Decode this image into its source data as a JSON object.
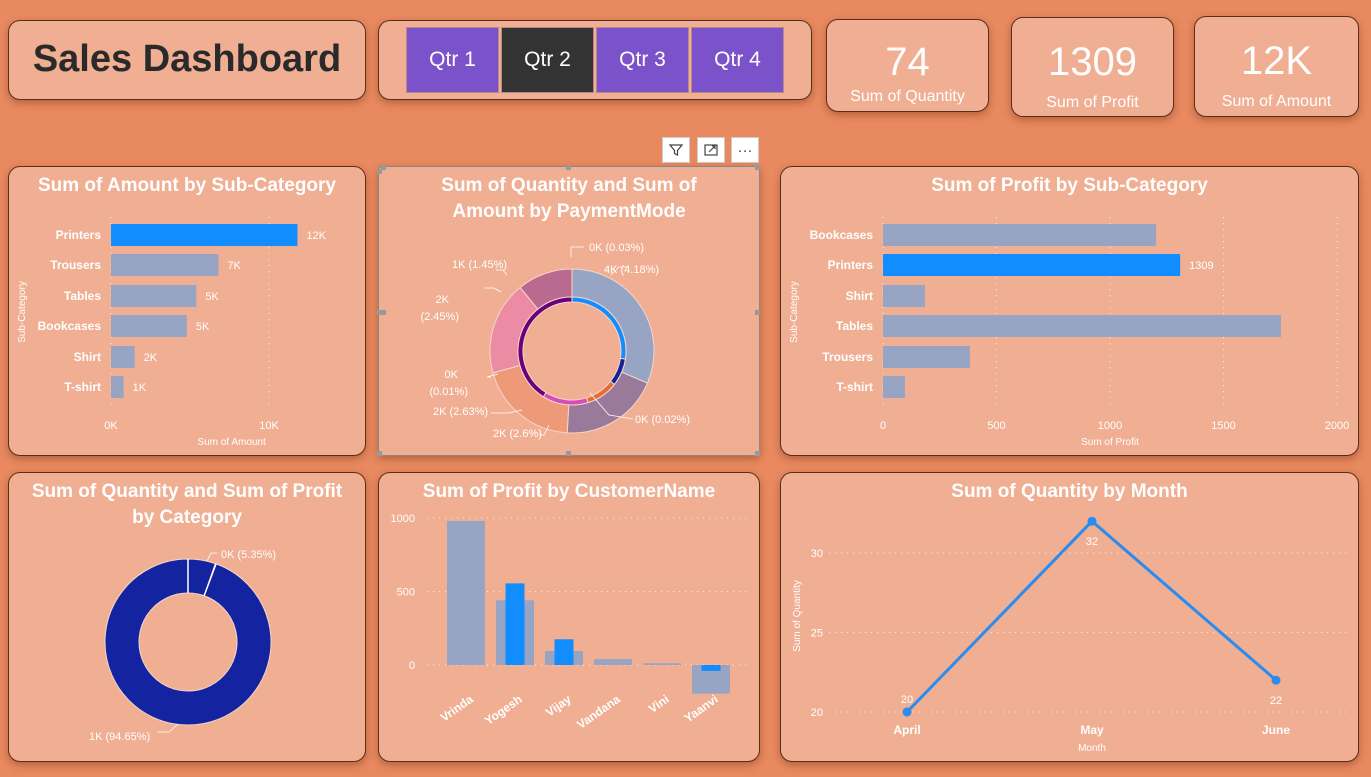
{
  "title": "Sales Dashboard",
  "quarters": [
    {
      "label": "Qtr 1",
      "selected": false
    },
    {
      "label": "Qtr 2",
      "selected": true
    },
    {
      "label": "Qtr 3",
      "selected": false
    },
    {
      "label": "Qtr 4",
      "selected": false
    }
  ],
  "kpis": [
    {
      "value": "74",
      "label": "Sum of Quantity"
    },
    {
      "value": "1309",
      "label": "Sum of Profit"
    },
    {
      "value": "12K",
      "label": "Sum of Amount"
    }
  ],
  "toolbar": {
    "icons": [
      "filter-icon",
      "focus-mode-icon",
      "more-options-icon"
    ],
    "more": "···"
  },
  "colors": {
    "background": "#e8895f",
    "card": "#f0ae92",
    "highlight": "#118dff",
    "bar": "#97a4c4",
    "quarter": "#7b52c9",
    "quarter_selected": "#333333",
    "category": "#1424a0"
  },
  "chart_data": [
    {
      "type": "bar",
      "orientation": "horizontal",
      "title": "Sum of Amount by Sub-Category",
      "xlabel": "Sum of Amount",
      "ylabel": "Sub-Category",
      "categories": [
        "Printers",
        "Trousers",
        "Tables",
        "Bookcases",
        "Shirt",
        "T-shirt"
      ],
      "values": [
        11.8,
        6.8,
        5.4,
        4.8,
        1.5,
        0.8
      ],
      "data_labels": [
        "12K",
        "7K",
        "5K",
        "5K",
        "2K",
        "1K"
      ],
      "highlighted": [
        "Printers"
      ],
      "xticks": [
        "0K",
        "10K"
      ],
      "xtick_values": [
        0,
        10
      ],
      "unit": "K",
      "xlim": [
        0,
        14
      ],
      "grid": true
    },
    {
      "type": "donut",
      "title": "Sum of Quantity and Sum of Amount by PaymentMode",
      "outer_ring": [
        {
          "value": 4.18,
          "label": "4K (4.18%)",
          "color": "#97a4c4"
        },
        {
          "value": 2.6,
          "label": "2K (2.6%)",
          "color": "#9a7a9a"
        },
        {
          "value": 2.63,
          "label": "2K (2.63%)",
          "color": "#ee9a78"
        },
        {
          "value": 2.45,
          "label": "2K (2.45%)",
          "color": "#ec8ca4"
        },
        {
          "value": 1.45,
          "label": "1K (1.45%)",
          "color": "#b96a8e"
        }
      ],
      "inner_ring": [
        {
          "value": 0.02,
          "label": "0K (0.02%)",
          "color": "#118dff"
        },
        {
          "value": 0.006,
          "label": "",
          "color": "#12239e"
        },
        {
          "value": 0.007,
          "label": "",
          "color": "#e66c37"
        },
        {
          "value": 0.01,
          "label": "0K (0.01%)",
          "color": "#d64eb5"
        },
        {
          "value": 0.03,
          "label": "0K (0.03%)",
          "color": "#6b007b"
        }
      ]
    },
    {
      "type": "bar",
      "orientation": "horizontal",
      "title": "Sum of Profit by Sub-Category",
      "xlabel": "Sum of Profit",
      "ylabel": "Sub-Category",
      "categories": [
        "Bookcases",
        "Printers",
        "Shirt",
        "Tables",
        "Trousers",
        "T-shirt"
      ],
      "values": [
        1203,
        1309,
        185,
        1753,
        383,
        97
      ],
      "data_labels": [
        "",
        "1309",
        "",
        "",
        "",
        ""
      ],
      "highlighted": [
        "Printers"
      ],
      "xticks": [
        "0",
        "500",
        "1000",
        "1500",
        "2000"
      ],
      "xtick_values": [
        0,
        500,
        1000,
        1500,
        2000
      ],
      "xlim": [
        0,
        2000
      ],
      "grid": true
    },
    {
      "type": "donut",
      "title": "Sum of Quantity and Sum of Profit by Category",
      "slices": [
        {
          "value": 5.35,
          "label": "0K (5.35%)",
          "color": "#1424a0"
        },
        {
          "value": 94.65,
          "label": "1K (94.65%)",
          "color": "#1424a0"
        }
      ]
    },
    {
      "type": "bar",
      "title": "Sum of Profit by CustomerName",
      "categories": [
        "Vrinda",
        "Yogesh",
        "Vijay",
        "Vandana",
        "Vini",
        "Yaanvi"
      ],
      "series": [
        {
          "values": [
            980,
            440,
            95,
            40,
            12,
            -195
          ],
          "color": "#97a4c4"
        },
        {
          "values": [
            0,
            555,
            175,
            0,
            0,
            -40
          ],
          "color": "#118dff"
        }
      ],
      "yticks": [
        0,
        500,
        1000
      ],
      "ylim": [
        -200,
        1000
      ],
      "grid": true
    },
    {
      "type": "line",
      "title": "Sum of Quantity by Month",
      "xlabel": "Month",
      "ylabel": "Sum of Quantity",
      "categories": [
        "April",
        "May",
        "June"
      ],
      "values": [
        20,
        32,
        22
      ],
      "yticks": [
        20,
        25,
        30
      ],
      "ylim": [
        20,
        32
      ],
      "grid": true,
      "color": "#2b8cf0"
    }
  ]
}
